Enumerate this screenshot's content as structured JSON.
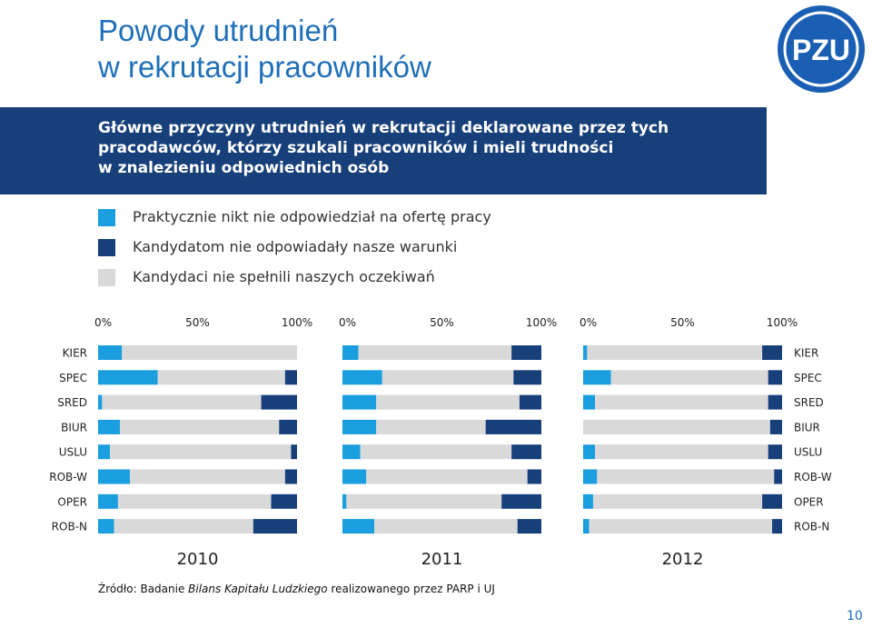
{
  "header": {
    "title_line1": "Powody utrudnień",
    "title_line2": "w rekrutacji pracowników",
    "logo_text": "PZU"
  },
  "banner": {
    "line1": "Główne przyczyny utrudnień w rekrutacji deklarowane przez tych",
    "line2": "pracodawców, którzy szukali pracowników i mieli trudności",
    "line3": "w znalezieniu odpowiednich osób"
  },
  "legend": [
    {
      "label": "Praktycznie nikt nie odpowiedział na ofertę pracy",
      "color": "#1a9ee0"
    },
    {
      "label": "Kandydatom nie odpowiadały nasze warunki",
      "color": "#173f7a"
    },
    {
      "label": "Kandydaci nie spełnili naszych oczekiwań",
      "color": "#d9d9d9"
    }
  ],
  "chart_data": {
    "type": "bar",
    "orientation": "horizontal",
    "stacked": true,
    "categories": [
      "KIER",
      "SPEC",
      "SRED",
      "BIUR",
      "USLU",
      "ROB-W",
      "OPER",
      "ROB-N"
    ],
    "x_ticks": [
      "0%",
      "50%",
      "100%"
    ],
    "xlim": [
      0,
      100
    ],
    "colors": {
      "nikt": "#1a9ee0",
      "warunki": "#173f7a",
      "oczekiwania": "#d9d9d9"
    },
    "panels": [
      {
        "title": "2010",
        "nikt": [
          12,
          30,
          2,
          11,
          6,
          16,
          10,
          8
        ],
        "oczekiwania": [
          88,
          64,
          80,
          80,
          91,
          78,
          77,
          70
        ],
        "warunki": [
          0,
          6,
          18,
          9,
          3,
          6,
          13,
          22
        ]
      },
      {
        "title": "2011",
        "nikt": [
          8,
          20,
          17,
          17,
          9,
          12,
          2,
          16
        ],
        "oczekiwania": [
          77,
          66,
          72,
          55,
          76,
          81,
          78,
          72
        ],
        "warunki": [
          15,
          14,
          11,
          28,
          15,
          7,
          20,
          12
        ]
      },
      {
        "title": "2012",
        "nikt": [
          2,
          14,
          6,
          0,
          6,
          7,
          5,
          3
        ],
        "oczekiwania": [
          88,
          79,
          87,
          94,
          87,
          89,
          85,
          92
        ],
        "warunki": [
          10,
          7,
          7,
          6,
          7,
          4,
          10,
          5
        ]
      }
    ]
  },
  "source": {
    "prefix": "Źródło: Badanie ",
    "italic": "Bilans Kapitału Ludzkiego",
    "suffix": " realizowanego przez PARP i UJ"
  },
  "page_number": "10"
}
